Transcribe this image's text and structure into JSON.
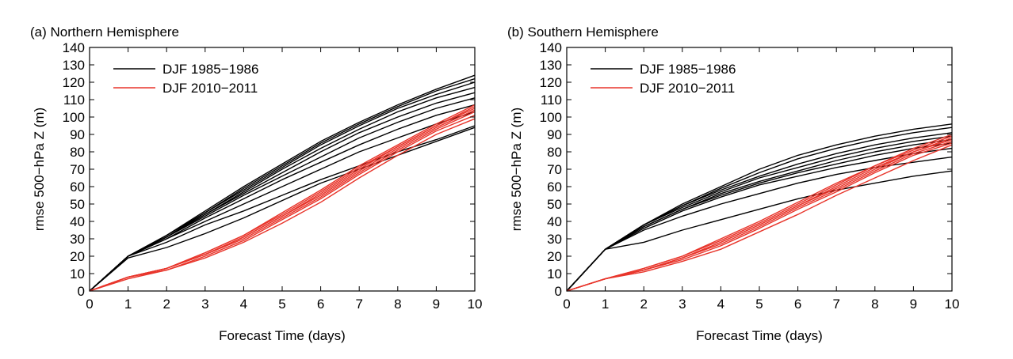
{
  "chart_data": [
    {
      "type": "line",
      "title": "(a) Northern Hemisphere",
      "xlabel": "Forecast Time (days)",
      "ylabel": "rmse 500−hPa Z (m)",
      "xlim": [
        0,
        10
      ],
      "ylim": [
        0,
        140
      ],
      "x_ticks": [
        "0",
        "1",
        "2",
        "3",
        "4",
        "5",
        "6",
        "7",
        "8",
        "9",
        "10"
      ],
      "y_ticks": [
        "0",
        "10",
        "20",
        "30",
        "40",
        "50",
        "60",
        "70",
        "80",
        "90",
        "100",
        "110",
        "120",
        "130",
        "140"
      ],
      "grid": false,
      "legend_position": "top-left",
      "legend": [
        {
          "label": "DJF 1985−1986",
          "color": "#000000"
        },
        {
          "label": "DJF 2010−2011",
          "color": "#e8352b"
        }
      ],
      "x": [
        0,
        1,
        2,
        3,
        4,
        5,
        6,
        7,
        8,
        9,
        10
      ],
      "series": [
        {
          "group": 0,
          "values": [
            0,
            20,
            32,
            46,
            60,
            73,
            86,
            97,
            107,
            116,
            124
          ]
        },
        {
          "group": 0,
          "values": [
            0,
            20,
            32,
            45,
            59,
            72,
            85,
            96,
            106,
            115,
            122
          ]
        },
        {
          "group": 0,
          "values": [
            0,
            20,
            31,
            45,
            58,
            71,
            84,
            95,
            105,
            113,
            120
          ]
        },
        {
          "group": 0,
          "values": [
            0,
            20,
            31,
            44,
            57,
            70,
            82,
            93,
            103,
            111,
            117
          ]
        },
        {
          "group": 0,
          "values": [
            0,
            20,
            31,
            44,
            56,
            68,
            80,
            91,
            100,
            108,
            114
          ]
        },
        {
          "group": 0,
          "values": [
            0,
            20,
            31,
            43,
            55,
            66,
            77,
            88,
            97,
            105,
            111
          ]
        },
        {
          "group": 0,
          "values": [
            0,
            20,
            30,
            42,
            53,
            64,
            74,
            84,
            93,
            101,
            107
          ]
        },
        {
          "group": 0,
          "values": [
            0,
            20,
            30,
            40,
            50,
            60,
            70,
            80,
            88,
            96,
            103
          ]
        },
        {
          "group": 0,
          "values": [
            0,
            20,
            28,
            38,
            46,
            55,
            64,
            72,
            80,
            87,
            95
          ]
        },
        {
          "group": 0,
          "values": [
            0,
            19,
            25,
            33,
            42,
            52,
            62,
            70,
            78,
            86,
            94
          ]
        },
        {
          "group": 1,
          "values": [
            0,
            8,
            13,
            22,
            32,
            45,
            58,
            72,
            84,
            96,
            107
          ]
        },
        {
          "group": 1,
          "values": [
            0,
            8,
            13,
            22,
            32,
            44,
            57,
            71,
            83,
            95,
            106
          ]
        },
        {
          "group": 1,
          "values": [
            0,
            8,
            13,
            21,
            31,
            43,
            56,
            70,
            83,
            95,
            105
          ]
        },
        {
          "group": 1,
          "values": [
            0,
            8,
            13,
            21,
            31,
            43,
            55,
            69,
            82,
            94,
            104
          ]
        },
        {
          "group": 1,
          "values": [
            0,
            8,
            13,
            21,
            30,
            42,
            54,
            68,
            81,
            93,
            103
          ]
        },
        {
          "group": 1,
          "values": [
            0,
            8,
            12,
            20,
            29,
            41,
            53,
            67,
            80,
            92,
            101
          ]
        },
        {
          "group": 1,
          "values": [
            0,
            7,
            12,
            19,
            28,
            39,
            51,
            65,
            78,
            90,
            99
          ]
        }
      ]
    },
    {
      "type": "line",
      "title": "(b) Southern Hemisphere",
      "xlabel": "Forecast Time (days)",
      "ylabel": "rmse 500−hPa Z (m)",
      "xlim": [
        0,
        10
      ],
      "ylim": [
        0,
        140
      ],
      "x_ticks": [
        "0",
        "1",
        "2",
        "3",
        "4",
        "5",
        "6",
        "7",
        "8",
        "9",
        "10"
      ],
      "y_ticks": [
        "0",
        "10",
        "20",
        "30",
        "40",
        "50",
        "60",
        "70",
        "80",
        "90",
        "100",
        "110",
        "120",
        "130",
        "140"
      ],
      "grid": false,
      "legend_position": "top-left",
      "legend": [
        {
          "label": "DJF 1985−1986",
          "color": "#000000"
        },
        {
          "label": "DJF 2010−2011",
          "color": "#e8352b"
        }
      ],
      "x": [
        0,
        1,
        2,
        3,
        4,
        5,
        6,
        7,
        8,
        9,
        10
      ],
      "series": [
        {
          "group": 0,
          "values": [
            0,
            24,
            38,
            50,
            60,
            70,
            78,
            84,
            89,
            93,
            96
          ]
        },
        {
          "group": 0,
          "values": [
            0,
            24,
            38,
            49,
            59,
            68,
            76,
            82,
            87,
            91,
            94
          ]
        },
        {
          "group": 0,
          "values": [
            0,
            24,
            38,
            49,
            58,
            66,
            73,
            79,
            84,
            88,
            91
          ]
        },
        {
          "group": 0,
          "values": [
            0,
            24,
            38,
            48,
            57,
            65,
            71,
            77,
            82,
            86,
            89
          ]
        },
        {
          "group": 0,
          "values": [
            0,
            24,
            37,
            47,
            56,
            63,
            69,
            75,
            80,
            84,
            87
          ]
        },
        {
          "group": 0,
          "values": [
            0,
            24,
            37,
            47,
            55,
            62,
            68,
            73,
            78,
            82,
            85
          ]
        },
        {
          "group": 0,
          "values": [
            0,
            24,
            36,
            46,
            54,
            61,
            66,
            71,
            75,
            79,
            82
          ]
        },
        {
          "group": 0,
          "values": [
            0,
            24,
            35,
            43,
            50,
            56,
            62,
            67,
            71,
            74,
            77
          ]
        },
        {
          "group": 0,
          "values": [
            0,
            24,
            28,
            35,
            41,
            47,
            53,
            58,
            62,
            66,
            69
          ]
        },
        {
          "group": 1,
          "values": [
            0,
            7,
            13,
            20,
            30,
            40,
            51,
            62,
            72,
            82,
            90
          ]
        },
        {
          "group": 1,
          "values": [
            0,
            7,
            13,
            20,
            29,
            39,
            50,
            61,
            72,
            81,
            89
          ]
        },
        {
          "group": 1,
          "values": [
            0,
            7,
            12,
            19,
            28,
            38,
            49,
            60,
            71,
            80,
            88
          ]
        },
        {
          "group": 1,
          "values": [
            0,
            7,
            12,
            19,
            28,
            38,
            49,
            59,
            70,
            80,
            87
          ]
        },
        {
          "group": 1,
          "values": [
            0,
            7,
            12,
            19,
            27,
            37,
            48,
            58,
            69,
            79,
            86
          ]
        },
        {
          "group": 1,
          "values": [
            0,
            7,
            12,
            18,
            26,
            36,
            47,
            57,
            68,
            78,
            85
          ]
        },
        {
          "group": 1,
          "values": [
            0,
            7,
            11,
            17,
            24,
            34,
            44,
            55,
            65,
            75,
            84
          ]
        }
      ]
    }
  ]
}
